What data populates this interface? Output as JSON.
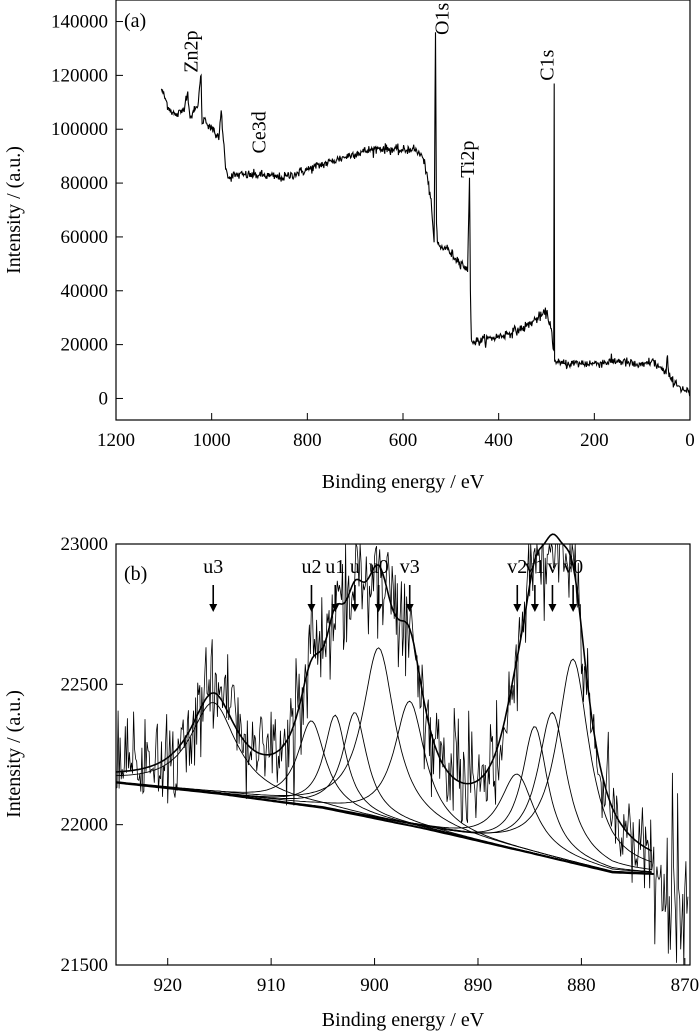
{
  "chart_data": [
    {
      "type": "line",
      "panel_label": "(a)",
      "xlabel": "Binding energy / eV",
      "ylabel": "Intensity / (a.u.)",
      "xlim": [
        1200,
        0
      ],
      "ylim": [
        -8000,
        148000
      ],
      "x_reversed": true,
      "x_ticks": [
        1200,
        1000,
        800,
        600,
        400,
        200,
        0
      ],
      "y_ticks": [
        0,
        20000,
        40000,
        60000,
        80000,
        100000,
        120000,
        140000
      ],
      "grid": false,
      "series": [
        {
          "x": [
            1105,
            1090,
            1075,
            1060,
            1050,
            1045,
            1040,
            1030,
            1022,
            1020,
            1015,
            1000,
            990,
            985,
            980,
            972,
            965,
            950,
            900,
            850,
            800,
            750,
            700,
            650,
            600,
            580,
            560,
            550,
            540,
            535,
            532,
            530,
            528,
            525,
            520,
            510,
            500,
            490,
            475,
            465,
            461,
            459,
            457,
            455,
            450,
            400,
            350,
            300,
            290,
            285,
            284,
            283,
            280,
            270,
            250,
            200,
            150,
            100,
            80,
            60,
            50,
            47,
            44,
            40,
            30,
            20,
            10,
            0
          ],
          "y": [
            115000,
            108000,
            105000,
            107000,
            114000,
            104000,
            106000,
            108000,
            120000,
            102000,
            104000,
            100000,
            98000,
            96000,
            107000,
            88000,
            82000,
            83000,
            83000,
            82000,
            85000,
            88000,
            91000,
            93000,
            92000,
            93000,
            90000,
            84000,
            70000,
            58000,
            136000,
            65000,
            58000,
            57000,
            56000,
            56000,
            54000,
            52000,
            50000,
            47000,
            82000,
            40000,
            22000,
            21000,
            21000,
            23000,
            26000,
            32000,
            26000,
            18000,
            117000,
            14000,
            13000,
            13000,
            13000,
            13000,
            14000,
            12000,
            14000,
            11000,
            9000,
            16000,
            8000,
            7000,
            6000,
            4000,
            3000,
            2000
          ]
        }
      ],
      "annotations": [
        {
          "text": "Zn2p",
          "x": 1030,
          "y": 121000
        },
        {
          "text": "Ce3d",
          "x": 887,
          "y": 91000
        },
        {
          "text": "O1s",
          "x": 505,
          "y": 135000
        },
        {
          "text": "Ti2p",
          "x": 452,
          "y": 82000
        },
        {
          "text": "C1s",
          "x": 285,
          "y": 118000
        }
      ]
    },
    {
      "type": "line",
      "panel_label": "(b)",
      "xlabel": "Binding energy / eV",
      "ylabel": "Intensity / (a.u.)",
      "xlim": [
        925,
        869.5
      ],
      "ylim": [
        21500,
        23000
      ],
      "x_reversed": true,
      "x_ticks": [
        920,
        910,
        900,
        890,
        880,
        870
      ],
      "y_ticks": [
        21500,
        22000,
        22500,
        23000
      ],
      "grid": false,
      "peaks": [
        {
          "label": "u3",
          "center": 915.6,
          "height": 22435,
          "width": 2.7
        },
        {
          "label": "u2",
          "center": 906.1,
          "height": 22370,
          "width": 1.6
        },
        {
          "label": "u1",
          "center": 903.8,
          "height": 22390,
          "width": 1.3
        },
        {
          "label": "u",
          "center": 901.9,
          "height": 22400,
          "width": 1.4
        },
        {
          "label": "u0",
          "center": 899.6,
          "height": 22630,
          "width": 1.9
        },
        {
          "label": "v3",
          "center": 896.6,
          "height": 22440,
          "width": 1.8
        },
        {
          "label": "v2",
          "center": 886.2,
          "height": 22180,
          "width": 2.0
        },
        {
          "label": "v1",
          "center": 884.5,
          "height": 22350,
          "width": 1.5
        },
        {
          "label": "v",
          "center": 882.8,
          "height": 22400,
          "width": 1.7
        },
        {
          "label": "v0",
          "center": 880.8,
          "height": 22590,
          "width": 1.9
        }
      ],
      "background": {
        "x": [
          925,
          915,
          905,
          895,
          885,
          877,
          870
        ],
        "y": [
          22150,
          22110,
          22060,
          21985,
          21900,
          21830,
          21820
        ]
      },
      "annotations": [
        {
          "text": "u3",
          "x": 915.6
        },
        {
          "text": "u2",
          "x": 906.1
        },
        {
          "text": "u1",
          "x": 903.8
        },
        {
          "text": "u",
          "x": 901.9
        },
        {
          "text": "u0",
          "x": 899.6
        },
        {
          "text": "v3",
          "x": 896.6
        },
        {
          "text": "v2",
          "x": 886.2
        },
        {
          "text": "v1",
          "x": 884.5
        },
        {
          "text": "v",
          "x": 882.8
        },
        {
          "text": "v0",
          "x": 880.8
        }
      ]
    }
  ]
}
